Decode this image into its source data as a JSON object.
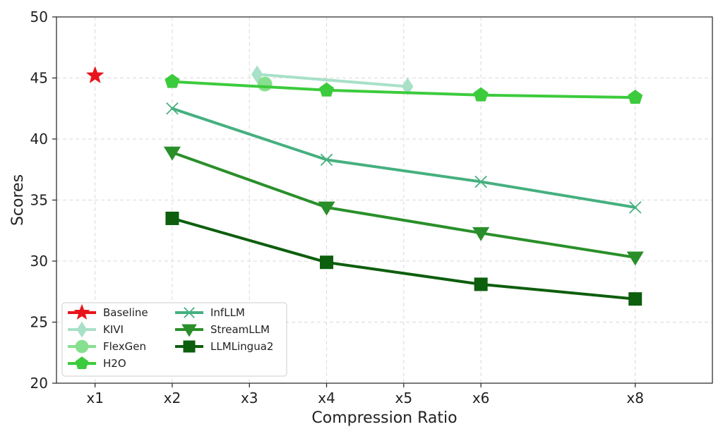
{
  "chart_data": {
    "type": "line",
    "title": "",
    "xlabel": "Compression Ratio",
    "ylabel": "Scores",
    "x_ticks": [
      1,
      2,
      3,
      4,
      5,
      6,
      8
    ],
    "x_tick_labels": [
      "x1",
      "x2",
      "x3",
      "x4",
      "x5",
      "x6",
      "x8"
    ],
    "xlim": [
      0.5,
      9
    ],
    "ylim": [
      20,
      50
    ],
    "y_ticks": [
      20,
      25,
      30,
      35,
      40,
      45,
      50
    ],
    "y_tick_labels": [
      "20",
      "25",
      "30",
      "35",
      "40",
      "45",
      "50"
    ],
    "grid": true,
    "legend_position": "lower-left",
    "legend_columns": 2,
    "series": [
      {
        "name": "Baseline",
        "marker": "star",
        "color": "#e8141b",
        "x": [
          1
        ],
        "y": [
          45.2
        ]
      },
      {
        "name": "KIVI",
        "marker": "diamond",
        "color": "#a8e0c8",
        "x": [
          3.1,
          5.05
        ],
        "y": [
          45.3,
          44.3
        ]
      },
      {
        "name": "FlexGen",
        "marker": "circle",
        "color": "#86e08f",
        "x": [
          3.2
        ],
        "y": [
          44.5
        ]
      },
      {
        "name": "H2O",
        "marker": "pentagon",
        "color": "#3ccb3c",
        "x": [
          2,
          4,
          6,
          8
        ],
        "y": [
          44.7,
          44.0,
          43.6,
          43.4
        ]
      },
      {
        "name": "InfLLM",
        "marker": "x",
        "color": "#45b07f",
        "x": [
          2,
          4,
          6,
          8
        ],
        "y": [
          42.5,
          38.3,
          36.5,
          34.4
        ]
      },
      {
        "name": "StreamLLM",
        "marker": "triangle-down",
        "color": "#2a8f2a",
        "x": [
          2,
          4,
          6,
          8
        ],
        "y": [
          38.9,
          34.4,
          32.3,
          30.3
        ]
      },
      {
        "name": "LLMLingua2",
        "marker": "square",
        "color": "#0d5e0d",
        "x": [
          2,
          4,
          6,
          8
        ],
        "y": [
          33.5,
          29.9,
          28.1,
          26.9
        ]
      }
    ]
  }
}
